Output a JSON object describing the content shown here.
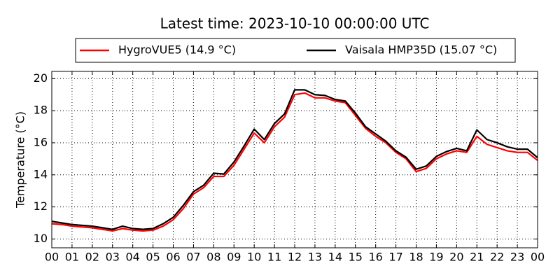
{
  "chart_data": {
    "type": "line",
    "title": "Latest time: 2023-10-10 00:00:00 UTC",
    "ylabel": "Temperature (°C)",
    "x": [
      0,
      0.5,
      1,
      1.5,
      2,
      2.5,
      3,
      3.5,
      4,
      4.5,
      5,
      5.5,
      6,
      6.5,
      7,
      7.5,
      8,
      8.5,
      9,
      9.5,
      10,
      10.5,
      11,
      11.5,
      12,
      12.5,
      13,
      13.5,
      14,
      14.5,
      15,
      15.5,
      16,
      16.5,
      17,
      17.5,
      18,
      18.5,
      19,
      19.5,
      20,
      20.5,
      21,
      21.5,
      22,
      22.5,
      23,
      23.5,
      24
    ],
    "series": [
      {
        "name": "HygroVUE5 (14.9 °C)",
        "color": "#ff0000",
        "values": [
          10.95,
          10.9,
          10.8,
          10.75,
          10.7,
          10.6,
          10.5,
          10.65,
          10.55,
          10.5,
          10.55,
          10.8,
          11.2,
          11.9,
          12.8,
          13.2,
          13.9,
          13.9,
          14.6,
          15.6,
          16.6,
          16.0,
          17.0,
          17.6,
          19.0,
          19.1,
          18.8,
          18.8,
          18.6,
          18.5,
          17.7,
          16.9,
          16.4,
          16.0,
          15.4,
          15.0,
          14.2,
          14.4,
          15.0,
          15.3,
          15.5,
          15.4,
          16.4,
          15.9,
          15.7,
          15.5,
          15.4,
          15.4,
          14.9
        ]
      },
      {
        "name": "Vaisala HMP35D (15.07 °C)",
        "color": "#000000",
        "values": [
          11.1,
          11.0,
          10.9,
          10.85,
          10.8,
          10.7,
          10.6,
          10.8,
          10.65,
          10.6,
          10.65,
          10.95,
          11.35,
          12.1,
          12.95,
          13.35,
          14.1,
          14.05,
          14.8,
          15.8,
          16.85,
          16.2,
          17.2,
          17.8,
          19.3,
          19.3,
          19.0,
          18.95,
          18.7,
          18.6,
          17.85,
          17.0,
          16.55,
          16.1,
          15.5,
          15.1,
          14.35,
          14.55,
          15.15,
          15.45,
          15.65,
          15.5,
          16.8,
          16.2,
          16.0,
          15.75,
          15.6,
          15.6,
          15.07
        ]
      }
    ],
    "xlim": [
      0,
      24
    ],
    "xticks": [
      {
        "value": 0,
        "label": "00"
      },
      {
        "value": 1,
        "label": "01"
      },
      {
        "value": 2,
        "label": "02"
      },
      {
        "value": 3,
        "label": "03"
      },
      {
        "value": 4,
        "label": "04"
      },
      {
        "value": 5,
        "label": "05"
      },
      {
        "value": 6,
        "label": "06"
      },
      {
        "value": 7,
        "label": "07"
      },
      {
        "value": 8,
        "label": "08"
      },
      {
        "value": 9,
        "label": "09"
      },
      {
        "value": 10,
        "label": "10"
      },
      {
        "value": 11,
        "label": "11"
      },
      {
        "value": 12,
        "label": "12"
      },
      {
        "value": 13,
        "label": "13"
      },
      {
        "value": 14,
        "label": "14"
      },
      {
        "value": 15,
        "label": "15"
      },
      {
        "value": 16,
        "label": "16"
      },
      {
        "value": 17,
        "label": "17"
      },
      {
        "value": 18,
        "label": "18"
      },
      {
        "value": 19,
        "label": "19"
      },
      {
        "value": 20,
        "label": "20"
      },
      {
        "value": 21,
        "label": "21"
      },
      {
        "value": 22,
        "label": "22"
      },
      {
        "value": 23,
        "label": "23"
      },
      {
        "value": 24,
        "label": "00"
      }
    ],
    "ylim": [
      9.45,
      20.45
    ],
    "yticks": [
      10,
      12,
      14,
      16,
      18,
      20
    ],
    "grid": true,
    "legend": "top"
  }
}
